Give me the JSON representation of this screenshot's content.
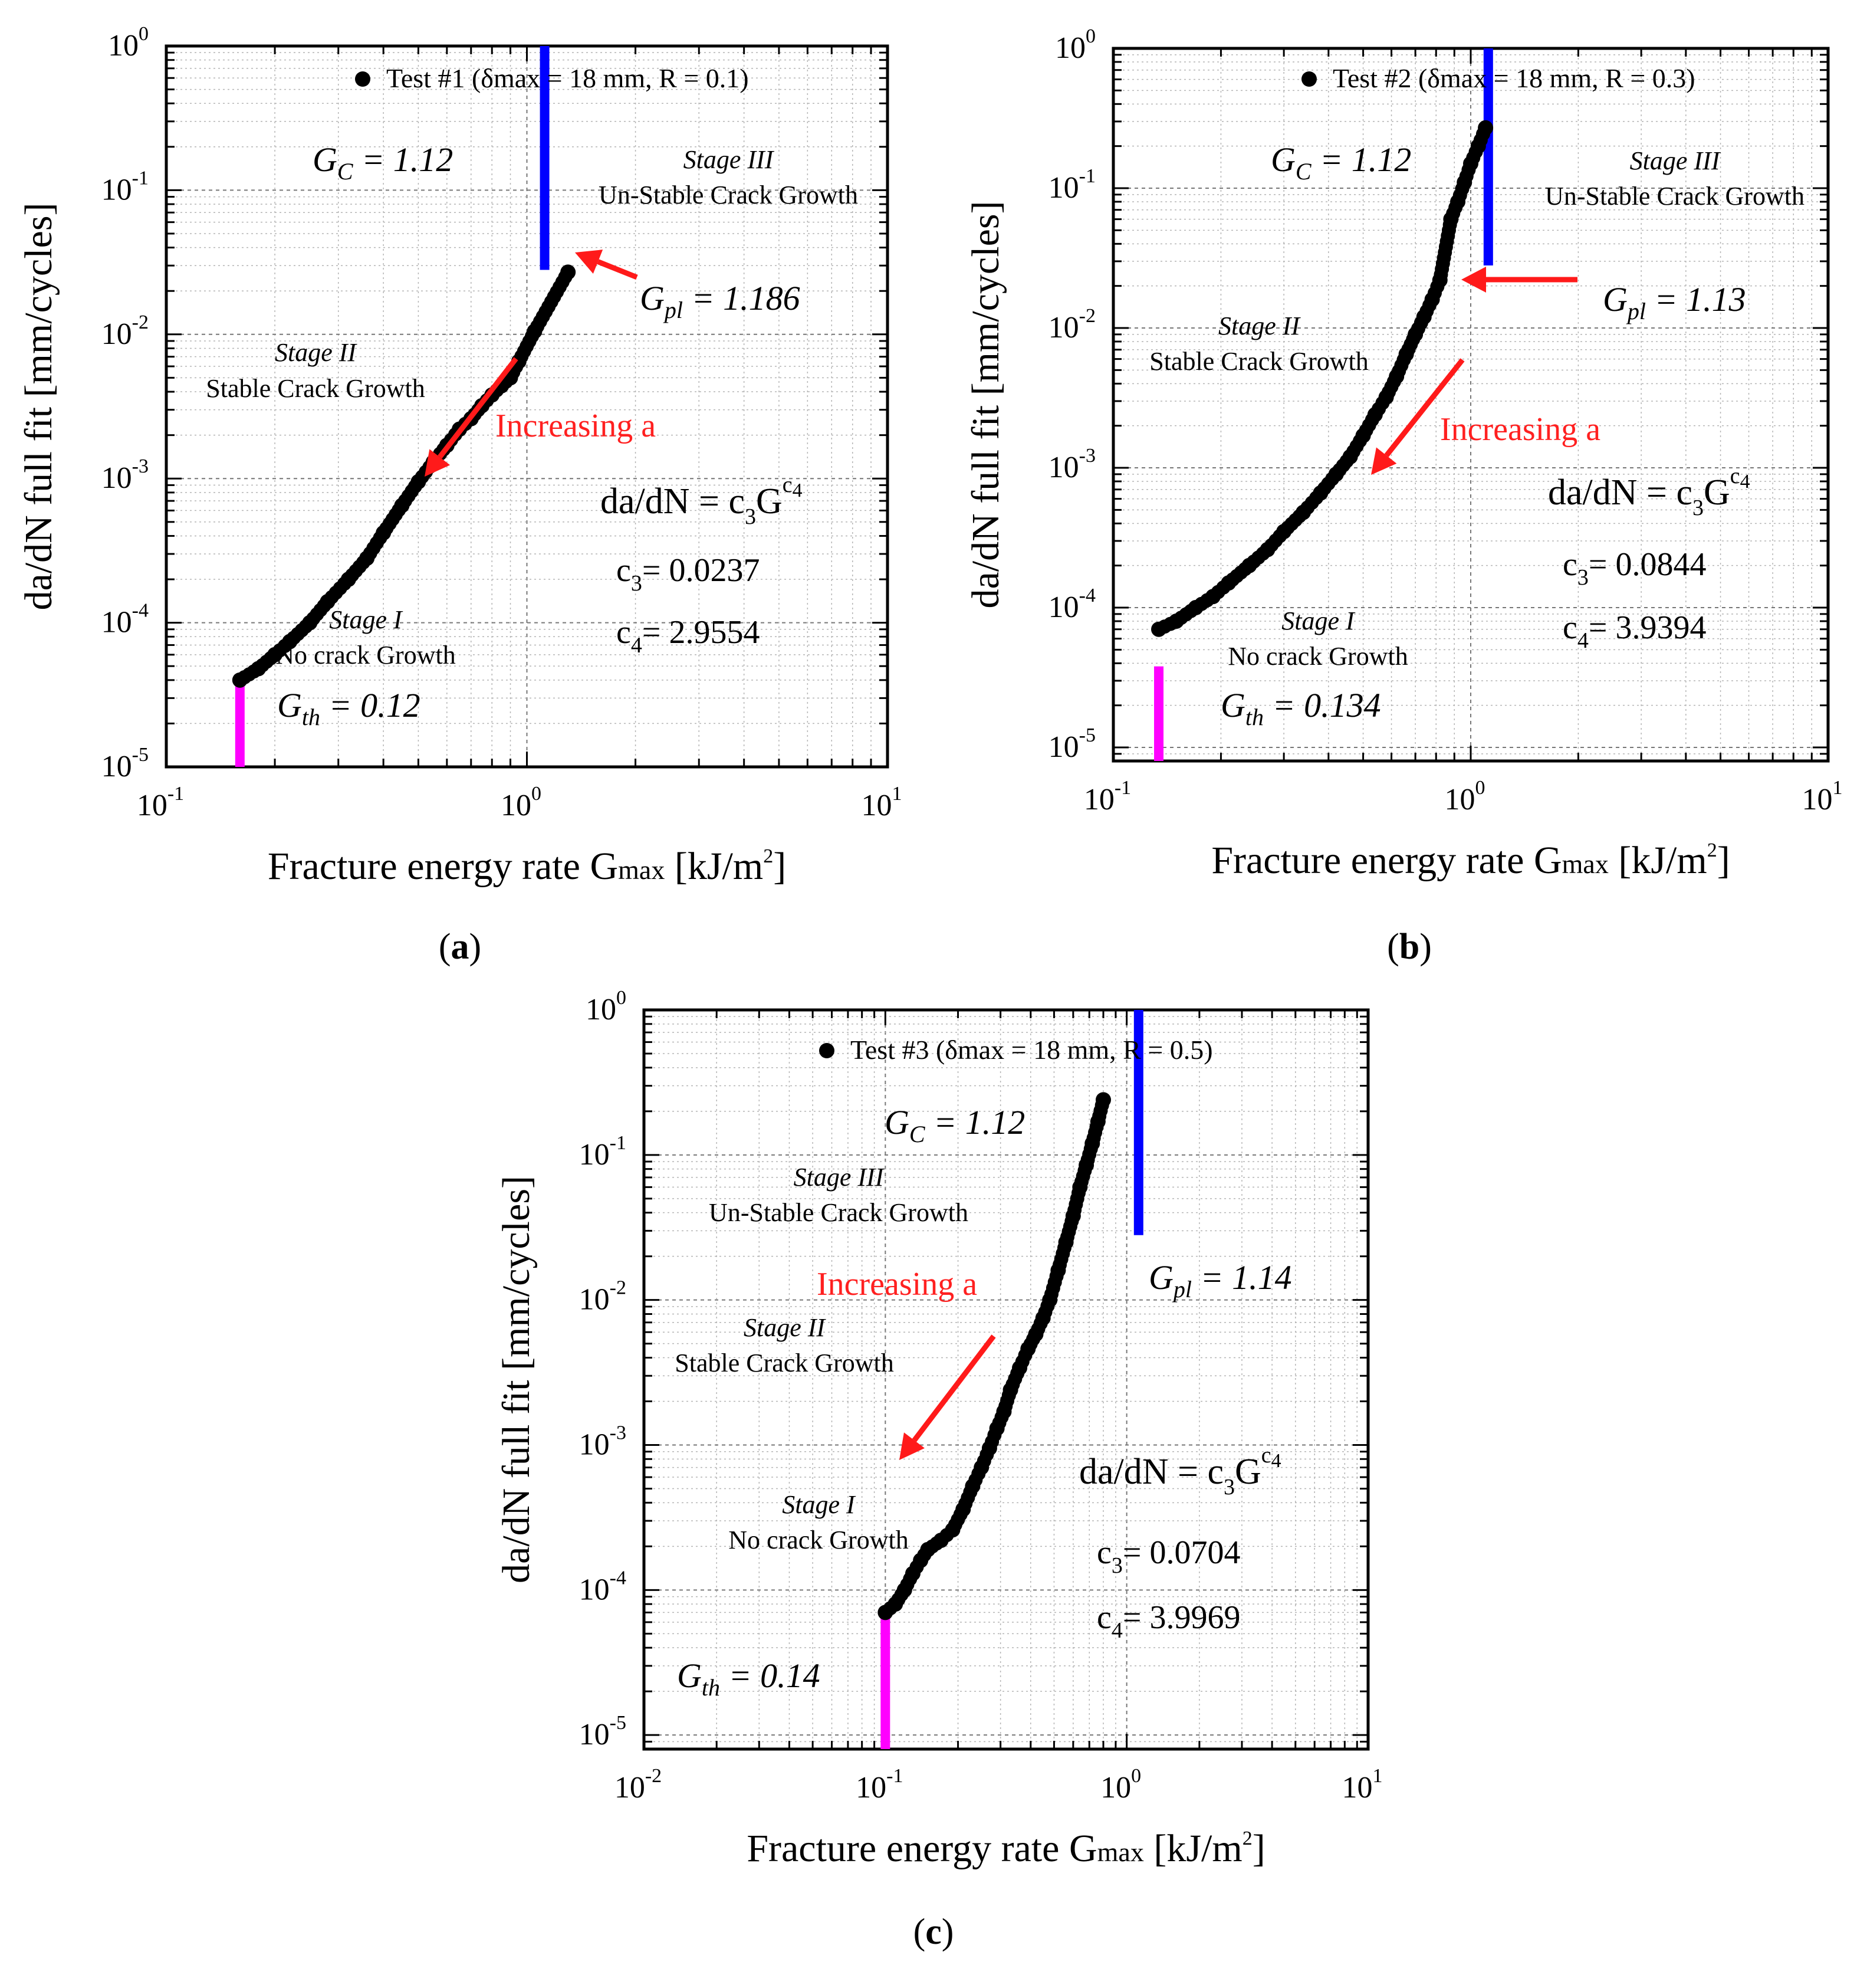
{
  "figure": {
    "panels": [
      "a",
      "b",
      "c"
    ]
  },
  "chart_data": [
    {
      "id": "a",
      "type": "scatter",
      "panel_label": "a",
      "xscale": "log",
      "yscale": "log",
      "xlim": [
        0.1,
        10
      ],
      "ylim": [
        1e-05,
        1
      ],
      "x_ticks": [
        "10^-1",
        "10^0",
        "10^1"
      ],
      "y_ticks": [
        "10^-5",
        "10^-4",
        "10^-3",
        "10^-2",
        "10^-1",
        "10^0"
      ],
      "xlabel": "Fracture energy rate Gmax [kJ/m2]",
      "ylabel": "da/dN full fit [mm/cycles]",
      "legend": "Test #1 (δmax = 18 mm, R = 0.1)",
      "legend_position": "top-right",
      "model": "da/dN = c3 G^c4",
      "c3": 0.0237,
      "c4": 2.9554,
      "G_C": 1.12,
      "G_pl": 1.186,
      "G_th": 0.12,
      "x": [
        0.16,
        0.18,
        0.2,
        0.22,
        0.25,
        0.28,
        0.32,
        0.36,
        0.4,
        0.45,
        0.5,
        0.55,
        0.6,
        0.65,
        0.7,
        0.75,
        0.8,
        0.85,
        0.9,
        0.95,
        1.05,
        1.3
      ],
      "y": [
        4e-05,
        4.8e-05,
        6e-05,
        7.4e-05,
        0.0001,
        0.00014,
        0.0002,
        0.00028,
        0.00042,
        0.00065,
        0.00095,
        0.0013,
        0.0017,
        0.0022,
        0.0026,
        0.0032,
        0.0038,
        0.0044,
        0.005,
        0.0065,
        0.0105,
        0.027
      ],
      "vertical_lines": [
        {
          "x": 0.16,
          "y_from": 1e-05,
          "y_to": 4e-05,
          "color": "#ff00ff"
        },
        {
          "x": 1.12,
          "y_from": 0.028,
          "y_to": 1.0,
          "color": "#0000ff"
        }
      ],
      "annotations": {
        "stage3_title": "Stage III",
        "stage3_desc": "Un-Stable Crack Growth",
        "stage2_title": "Stage II",
        "stage2_desc": "Stable Crack Growth",
        "stage1_title": "Stage I",
        "stage1_desc": "No crack Growth",
        "increasing": "Increasing  a",
        "gc_symbol": "G",
        "gc_sub": "C",
        "gc_value": "= 1.12",
        "gpl_symbol": "G",
        "gpl_sub": "pl",
        "gpl_value": "= 1.186",
        "gth_symbol": "G",
        "gth_sub": "th",
        "gth_value": "= 0.12",
        "c3_label": "= 0.0237",
        "c4_label": "= 2.9554"
      }
    },
    {
      "id": "b",
      "type": "scatter",
      "panel_label": "b",
      "xscale": "log",
      "yscale": "log",
      "xlim": [
        0.1,
        10
      ],
      "ylim": [
        8e-06,
        1
      ],
      "x_ticks": [
        "10^-1",
        "10^0",
        "10^1"
      ],
      "y_ticks": [
        "10^-5",
        "10^-4",
        "10^-3",
        "10^-2",
        "10^-1",
        "10^0"
      ],
      "xlabel": "Fracture energy rate Gmax [kJ/m2]",
      "ylabel": "da/dN full fit [mm/cycles]",
      "legend": "Test #2 (δmax = 18 mm, R = 0.3)",
      "legend_position": "top-right",
      "model": "da/dN = c3 G^c4",
      "c3": 0.0844,
      "c4": 3.9394,
      "G_C": 1.12,
      "G_pl": 1.13,
      "G_th": 0.134,
      "x": [
        0.134,
        0.15,
        0.17,
        0.19,
        0.21,
        0.24,
        0.27,
        0.3,
        0.34,
        0.38,
        0.42,
        0.46,
        0.5,
        0.54,
        0.58,
        0.62,
        0.66,
        0.7,
        0.74,
        0.78,
        0.82,
        0.88,
        0.92,
        0.96,
        1.0,
        1.05,
        1.1
      ],
      "y": [
        7e-05,
        8e-05,
        0.0001,
        0.00012,
        0.00015,
        0.0002,
        0.00026,
        0.00035,
        0.00048,
        0.00066,
        0.0009,
        0.0012,
        0.0017,
        0.0024,
        0.0032,
        0.0045,
        0.0065,
        0.009,
        0.012,
        0.016,
        0.022,
        0.06,
        0.08,
        0.11,
        0.15,
        0.2,
        0.27
      ],
      "vertical_lines": [
        {
          "x": 0.134,
          "y_from": 8e-06,
          "y_to": 3.8e-05,
          "color": "#ff00ff"
        },
        {
          "x": 1.12,
          "y_from": 0.028,
          "y_to": 1.0,
          "color": "#0000ff"
        }
      ],
      "annotations": {
        "stage3_title": "Stage III",
        "stage3_desc": "Un-Stable Crack Growth",
        "stage2_title": "Stage II",
        "stage2_desc": "Stable Crack Growth",
        "stage1_title": "Stage I",
        "stage1_desc": "No crack Growth",
        "increasing": "Increasing  a",
        "gc_symbol": "G",
        "gc_sub": "C",
        "gc_value": "= 1.12",
        "gpl_symbol": "G",
        "gpl_sub": "pl",
        "gpl_value": "= 1.13",
        "gth_symbol": "G",
        "gth_sub": "th",
        "gth_value": "= 0.134",
        "c3_label": "= 0.0844",
        "c4_label": "= 3.9394"
      }
    },
    {
      "id": "c",
      "type": "scatter",
      "panel_label": "c",
      "xscale": "log",
      "yscale": "log",
      "xlim": [
        0.01,
        10
      ],
      "ylim": [
        8e-06,
        1
      ],
      "x_ticks": [
        "10^-2",
        "10^-1",
        "10^0",
        "10^1"
      ],
      "y_ticks": [
        "10^-5",
        "10^-4",
        "10^-3",
        "10^-2",
        "10^-1",
        "10^0"
      ],
      "xlabel": "Fracture energy rate Gmax [kJ/m2]",
      "ylabel": "da/dN full fit [mm/cycles]",
      "legend": "Test #3 (δmax = 18 mm, R = 0.5)",
      "legend_position": "top-right",
      "model": "da/dN = c3 G^c4",
      "c3": 0.0704,
      "c4": 3.9969,
      "G_C": 1.12,
      "G_pl": 1.14,
      "G_th": 0.14,
      "x": [
        0.1,
        0.11,
        0.12,
        0.13,
        0.14,
        0.15,
        0.17,
        0.19,
        0.21,
        0.23,
        0.25,
        0.27,
        0.29,
        0.31,
        0.33,
        0.36,
        0.39,
        0.42,
        0.45,
        0.48,
        0.52,
        0.56,
        0.6,
        0.64,
        0.68,
        0.72,
        0.76,
        0.8
      ],
      "y": [
        7e-05,
        8e-05,
        0.0001,
        0.00013,
        0.00016,
        0.00019,
        0.00022,
        0.00026,
        0.00036,
        0.00052,
        0.0007,
        0.00095,
        0.0013,
        0.0017,
        0.0024,
        0.0034,
        0.0046,
        0.0058,
        0.0075,
        0.01,
        0.016,
        0.025,
        0.038,
        0.06,
        0.085,
        0.12,
        0.17,
        0.24
      ],
      "vertical_lines": [
        {
          "x": 0.1,
          "y_from": 8e-06,
          "y_to": 7e-05,
          "color": "#ff00ff"
        },
        {
          "x": 1.12,
          "y_from": 0.028,
          "y_to": 1.0,
          "color": "#0000ff"
        }
      ],
      "annotations": {
        "stage3_title": "Stage III",
        "stage3_desc": "Un-Stable Crack Growth",
        "stage2_title": "Stage II",
        "stage2_desc": "Stable Crack Growth",
        "stage1_title": "Stage I",
        "stage1_desc": "No crack Growth",
        "increasing": "Increasing  a",
        "gc_symbol": "G",
        "gc_sub": "C",
        "gc_value": "= 1.12",
        "gpl_symbol": "G",
        "gpl_sub": "pl",
        "gpl_value": "= 1.14",
        "gth_symbol": "G",
        "gth_sub": "th",
        "gth_value": "= 0.14",
        "c3_label": "= 0.0704",
        "c4_label": "= 3.9969"
      }
    }
  ]
}
